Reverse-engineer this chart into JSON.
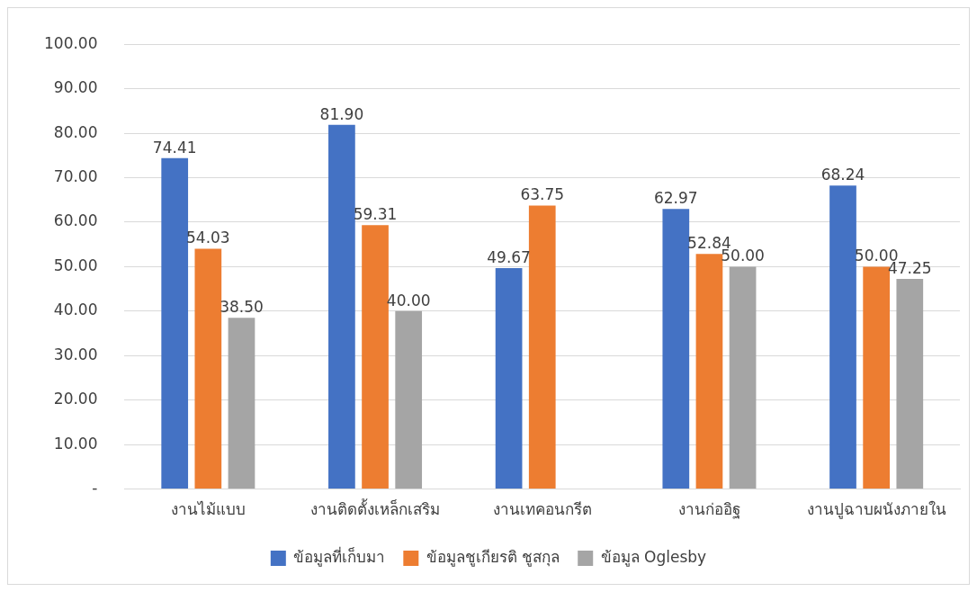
{
  "chart_data": {
    "type": "bar",
    "categories": [
      "งานไม้แบบ",
      "งานติดตั้งเหล็กเสริม",
      "งานเทคอนกรีต",
      "งานก่ออิฐ",
      "งานปูฉาบผนังภายใน"
    ],
    "series": [
      {
        "name": "ข้อมูลที่เก็บมา",
        "color": "#4472c4",
        "values": [
          74.41,
          81.9,
          49.67,
          62.97,
          68.24
        ],
        "value_labels": [
          "74.41",
          "81.90",
          "49.67",
          "62.97",
          "68.24"
        ]
      },
      {
        "name": "ข้อมูลชูเกียรติ ชูสกุล",
        "color": "#ed7d31",
        "values": [
          54.03,
          59.31,
          63.75,
          52.84,
          50
        ],
        "value_labels": [
          "54.03",
          "59.31",
          "63.75",
          "52.84",
          "50.00"
        ]
      },
      {
        "name": "ข้อมูล Oglesby",
        "color": "#a5a5a5",
        "values": [
          38.5,
          40,
          null,
          50,
          47.25
        ],
        "value_labels": [
          "38.50",
          "40.00",
          null,
          "50.00",
          "47.25"
        ]
      }
    ],
    "ylim": [
      0,
      100
    ],
    "yticks": [
      {
        "value": 0,
        "label": "-"
      },
      {
        "value": 10,
        "label": "10.00"
      },
      {
        "value": 20,
        "label": "20.00"
      },
      {
        "value": 30,
        "label": "30.00"
      },
      {
        "value": 40,
        "label": "40.00"
      },
      {
        "value": 50,
        "label": "50.00"
      },
      {
        "value": 60,
        "label": "60.00"
      },
      {
        "value": 70,
        "label": "70.00"
      },
      {
        "value": 80,
        "label": "80.00"
      },
      {
        "value": 90,
        "label": "90.00"
      },
      {
        "value": 100,
        "label": "100.00"
      }
    ],
    "grid": "y",
    "legend": "bottom"
  }
}
